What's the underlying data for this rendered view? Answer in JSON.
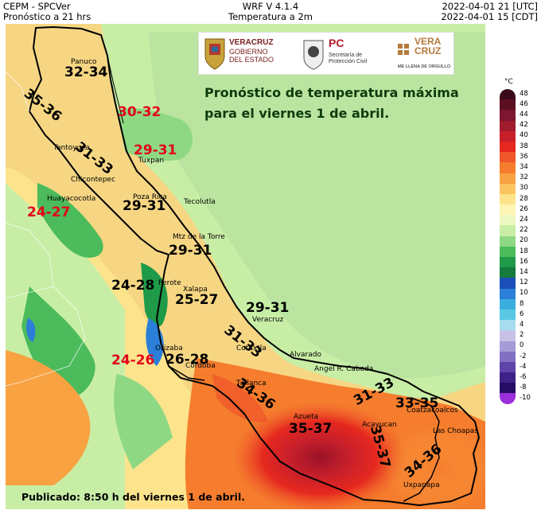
{
  "header": {
    "left_line1": "CEPM - SPCVer",
    "left_line2": "Pronóstico a 21 hrs",
    "center_line1": "WRF V 4.1.4",
    "center_line2": "Temperatura a 2m",
    "right_line1": "2022-04-01 21 [UTC]",
    "right_line2": "2022-04-01 15 [CDT]"
  },
  "logos": {
    "veracruz_line1": "VERACRUZ",
    "veracruz_line2": "GOBIERNO",
    "veracruz_line3": "DEL ESTADO",
    "pc_mark": "PC",
    "pc_line1": "Secretaría de",
    "pc_line2": "Protección Civil",
    "vera_a": "VERA",
    "vera_b": "CRUZ",
    "vera_slogan": "ME LLENA DE ORGULLO"
  },
  "headline": {
    "line1": "Pronóstico de temperatura máxima",
    "line2": "para el viernes 1 de abril."
  },
  "published": "Publicado: 8:50 h del viernes 1 de abril.",
  "cities": {
    "panuco": "Panuco",
    "tantoyuca": "Tantoyuca",
    "chicontepec": "Chicontepec",
    "tuxpan": "Tuxpan",
    "huayacocotla": "Huayacocotla",
    "poza_rica": "Poza Rica",
    "tecolutla": "Tecolutla",
    "martinez": "Mtz de la Torre",
    "perote": "Perote",
    "xalapa": "Xalapa",
    "veracruz": "Veracruz",
    "orizaba": "Orizaba",
    "cordoba": "Cordoba",
    "cotaxtla": "Cotaxtla",
    "alvarado": "Alvarado",
    "angel_cabada": "Angel R. Cabada",
    "tierra_blanca": "T.Blanca",
    "azueta": "Azueta",
    "acayucan": "Acayucan",
    "coatzacoalcos": "Coatzacoalcos",
    "las_choapas": "Las Choapas",
    "uxpanapa": "Uxpanapa"
  },
  "ranges": {
    "panuco": "32-34",
    "tantoyuca": "35-36",
    "tamiahua": "30-32",
    "chicontepec": "31-33",
    "tuxpan": "29-31",
    "huayacocotla": "24-27",
    "poza_rica": "29-31",
    "martinez": "29-31",
    "perote": "24-28",
    "xalapa": "25-27",
    "veracruz": "29-31",
    "cotaxtla": "31-33",
    "orizaba_red": "24-26",
    "cordoba": "26-28",
    "tierra_blanca": "34-36",
    "azueta": "35-37",
    "acayucan": "35-37",
    "cabada": "31-33",
    "coatza": "33-35",
    "choapas": "34-36"
  },
  "colorbar": {
    "unit": "°C",
    "ticks": [
      "48",
      "46",
      "44",
      "42",
      "40",
      "38",
      "36",
      "34",
      "32",
      "30",
      "28",
      "26",
      "24",
      "22",
      "20",
      "18",
      "16",
      "14",
      "12",
      "10",
      "8",
      "6",
      "4",
      "2",
      "0",
      "-2",
      "-4",
      "-6",
      "-8",
      "-10"
    ],
    "colors": [
      "#3a0a1a",
      "#5c0f22",
      "#7d1630",
      "#a01b2b",
      "#c8202b",
      "#e5281f",
      "#f0572a",
      "#f57d2d",
      "#f9a242",
      "#fbc560",
      "#fde48c",
      "#fdf5b4",
      "#eef8c2",
      "#c8eea6",
      "#8ed884",
      "#4cbb5c",
      "#1f9a48",
      "#167a3d",
      "#1b4fb8",
      "#2b7fd8",
      "#3aaedf",
      "#5bc8e3",
      "#a6dcef",
      "#c9c2e6",
      "#a69bd6",
      "#8270c3",
      "#5e43a9",
      "#3f2188",
      "#250d66",
      "#9b2fd9"
    ]
  }
}
